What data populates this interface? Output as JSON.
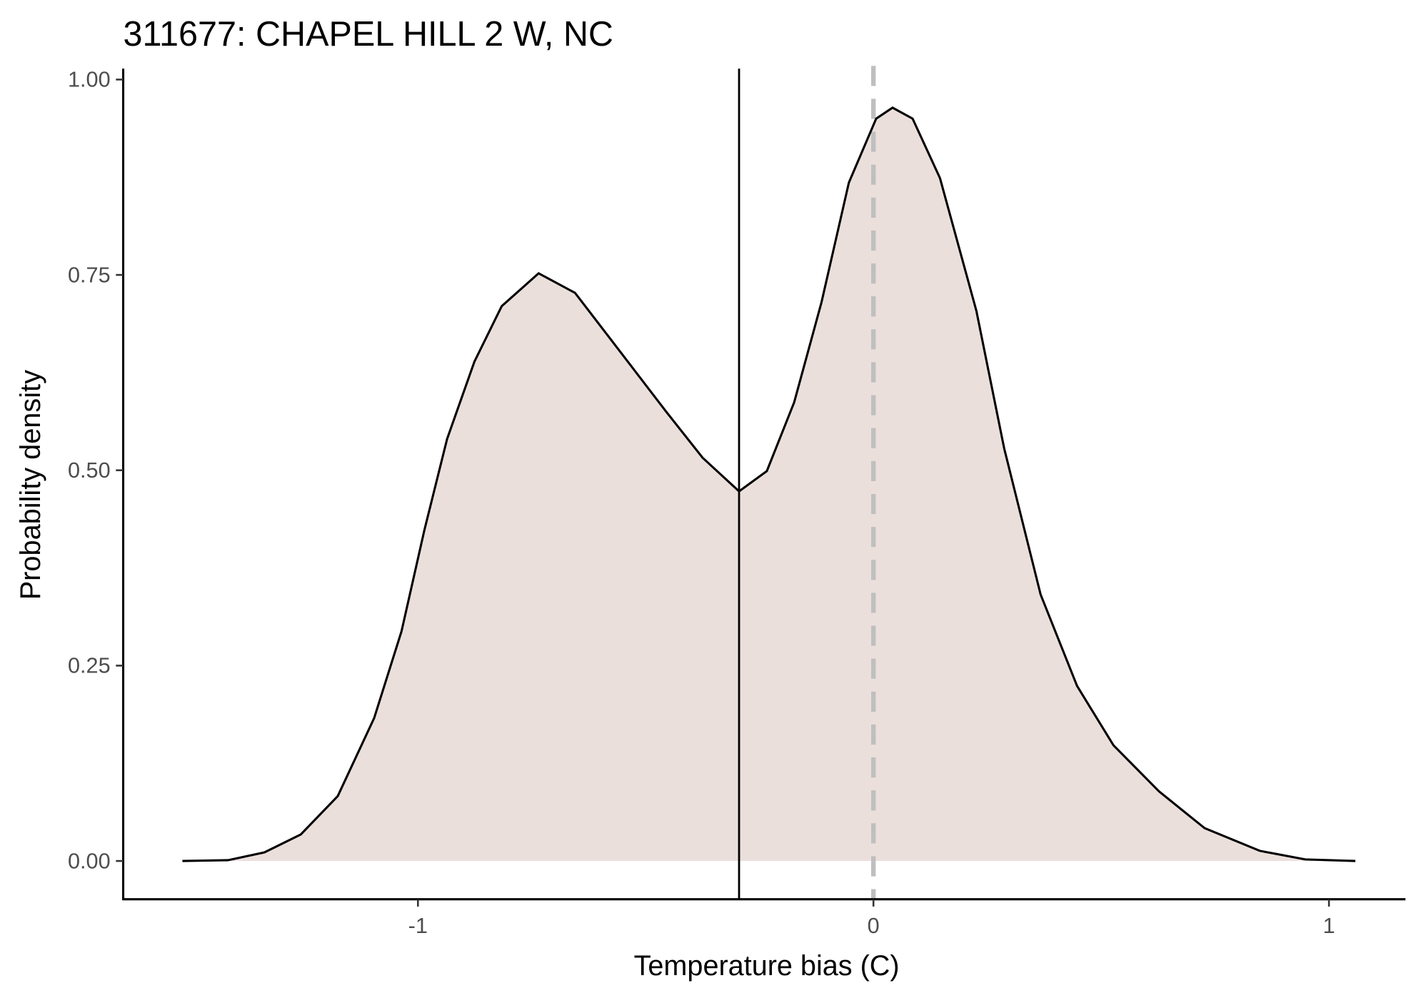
{
  "chart_data": {
    "type": "area",
    "title": "311677: CHAPEL HILL 2 W, NC",
    "x_label": "Temperature bias (C)",
    "y_label": "Probability density",
    "x": [
      -1.517,
      -1.417,
      -1.337,
      -1.257,
      -1.176,
      -1.096,
      -1.036,
      -0.986,
      -0.936,
      -0.876,
      -0.816,
      -0.735,
      -0.655,
      -0.555,
      -0.455,
      -0.375,
      -0.295,
      -0.234,
      -0.174,
      -0.114,
      -0.054,
      0.006,
      0.042,
      0.086,
      0.146,
      0.226,
      0.287,
      0.367,
      0.447,
      0.527,
      0.627,
      0.727,
      0.848,
      0.948,
      1.058
    ],
    "values": [
      0,
      0.001,
      0.011,
      0.034,
      0.083,
      0.183,
      0.294,
      0.423,
      0.54,
      0.639,
      0.71,
      0.752,
      0.727,
      0.651,
      0.575,
      0.516,
      0.473,
      0.499,
      0.587,
      0.715,
      0.868,
      0.95,
      0.964,
      0.95,
      0.874,
      0.704,
      0.528,
      0.341,
      0.224,
      0.148,
      0.089,
      0.042,
      0.013,
      0.002,
      0
    ],
    "color": "#000000",
    "fill": "#ebdfdc",
    "vlines": [
      {
        "x": -0.295,
        "color": "#000000",
        "dashed": false
      },
      {
        "x": 0,
        "color": "#bfbfbf",
        "dashed": true
      }
    ],
    "xlim": [
      -1.647,
      1.168
    ],
    "ylim": [
      -0.049,
      1.014
    ],
    "xticks": [
      -1,
      0,
      1
    ],
    "yticks": [
      {
        "value": 0,
        "label": "0.00"
      },
      0.25,
      {
        "value": 0.5,
        "label": "0.50"
      },
      0.75,
      {
        "value": 1,
        "label": "1.00"
      }
    ],
    "grid": false
  }
}
